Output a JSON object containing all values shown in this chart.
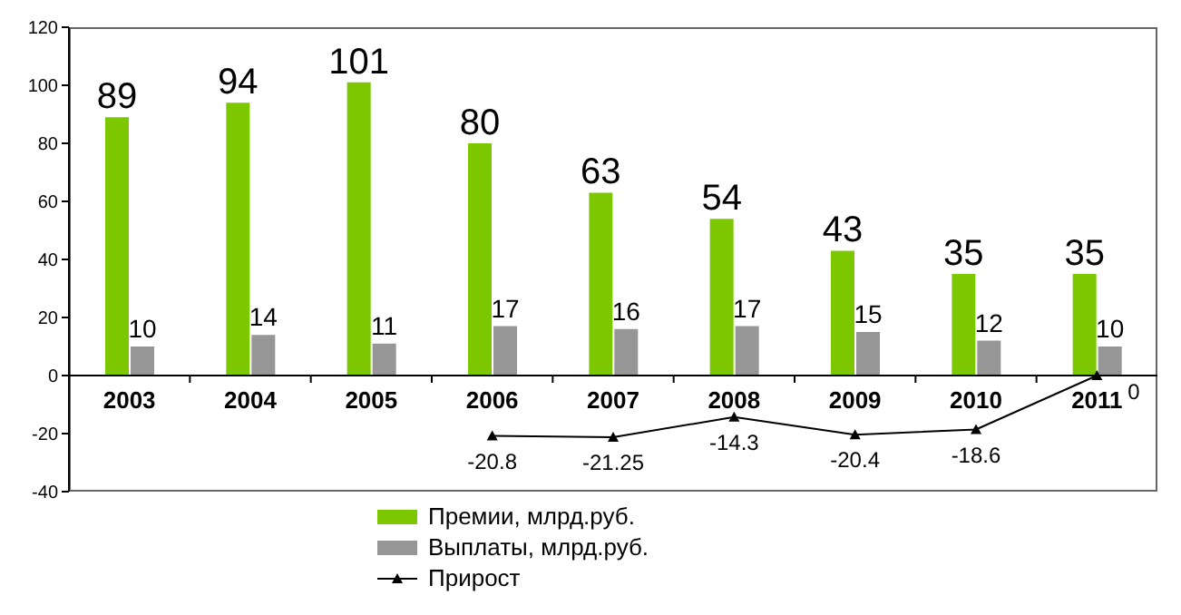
{
  "chart_data": {
    "type": "bar",
    "categories": [
      "2003",
      "2004",
      "2005",
      "2006",
      "2007",
      "2008",
      "2009",
      "2010",
      "2011"
    ],
    "series": [
      {
        "name": "Премии, млрд.руб.",
        "color": "#7dc700",
        "values": [
          89,
          94,
          101,
          80,
          63,
          54,
          43,
          35,
          35
        ]
      },
      {
        "name": "Выплаты, млрд.руб.",
        "color": "#969696",
        "values": [
          10,
          14,
          11,
          17,
          16,
          17,
          15,
          12,
          10
        ]
      },
      {
        "name": "Прирост",
        "type": "line",
        "color": "#000000",
        "marker": "triangle",
        "values": [
          null,
          null,
          null,
          -20.8,
          -21.25,
          -14.3,
          -20.4,
          -18.6,
          0
        ]
      }
    ],
    "ylim": [
      -40,
      120
    ],
    "yticks": [
      -40,
      -20,
      0,
      20,
      40,
      60,
      80,
      100,
      120
    ],
    "legend": "bottom",
    "data_labels": true
  }
}
